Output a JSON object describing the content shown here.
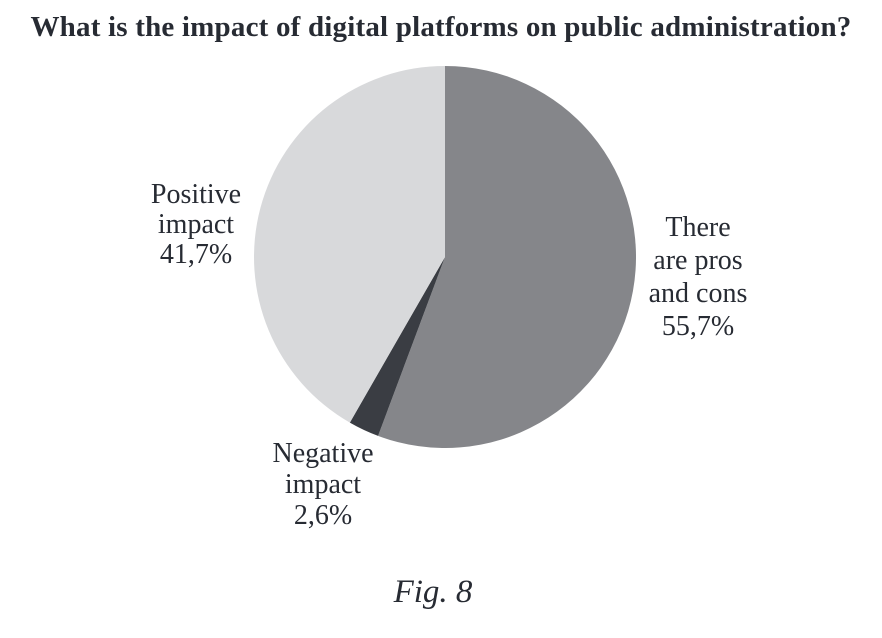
{
  "page": {
    "caption": "Fig. 8"
  },
  "chart_data": {
    "type": "pie",
    "title": "What is the impact of digital platforms on public administration?",
    "unit": "%",
    "decimal_separator": ",",
    "start_angle_deg": 0,
    "direction": "clockwise",
    "legend_position": "none",
    "labels_placement": "outside",
    "slices": [
      {
        "label": "There are pros and cons",
        "value": 55.7,
        "display_value": "55,7%",
        "color": "#85868a",
        "label_lines": [
          "There",
          "are pros",
          "and cons",
          "55,7%"
        ]
      },
      {
        "label": "Negative impact",
        "value": 2.6,
        "display_value": "2,6%",
        "color": "#3a3d43",
        "label_lines": [
          "Negative",
          "impact",
          "2,6%"
        ]
      },
      {
        "label": "Positive impact",
        "value": 41.7,
        "display_value": "41,7%",
        "color": "#d8d9db",
        "label_lines": [
          "Positive",
          "impact",
          "41,7%"
        ]
      }
    ]
  },
  "colors": {
    "background": "#ffffff",
    "text": "#272b33"
  }
}
